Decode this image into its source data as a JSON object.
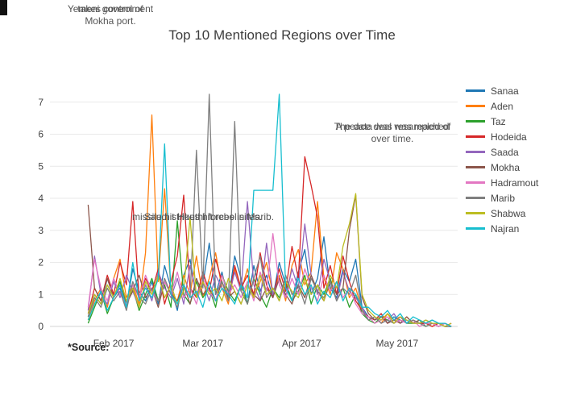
{
  "title": "Top 10 Mentioned Regions over Time",
  "source_label": "*Source:",
  "annotations": {
    "mokha": {
      "line1a": "Yemeni government",
      "line1b": "takes control of",
      "line2": "Mokha port."
    },
    "marib": {
      "line1a": "missile hit Houthi forces in Marib.",
      "line1b": "Saudi strikes hit rebel sites."
    },
    "resample": {
      "line1a": "A peace deal was reached",
      "line1b": "The data was resampled of",
      "line2": "over time."
    }
  },
  "chart_data": {
    "type": "line",
    "title": "Top 10 Mentioned Regions over Time",
    "xlabel": "",
    "ylabel": "",
    "grid": "horizontal",
    "legend_position": "right",
    "x_unit": "days since 2017-01-12",
    "xlim": [
      0,
      128
    ],
    "ylim": [
      -0.2,
      7.8
    ],
    "y_ticks": [
      0,
      1,
      2,
      3,
      4,
      5,
      6,
      7
    ],
    "x_ticks": [
      {
        "day": 20,
        "label": "Feb 2017"
      },
      {
        "day": 48,
        "label": "Mar 2017"
      },
      {
        "day": 79,
        "label": "Apr 2017"
      },
      {
        "day": 109,
        "label": "May 2017"
      }
    ],
    "x": [
      12,
      14,
      16,
      18,
      20,
      22,
      24,
      26,
      28,
      30,
      32,
      34,
      36,
      38,
      40,
      42,
      44,
      46,
      48,
      50,
      52,
      54,
      56,
      58,
      60,
      62,
      64,
      66,
      68,
      70,
      72,
      74,
      76,
      78,
      80,
      82,
      84,
      86,
      88,
      90,
      92,
      94,
      96,
      98,
      100,
      102,
      104,
      106,
      108,
      110,
      112,
      114,
      116,
      118,
      120,
      122,
      124,
      126
    ],
    "series": [
      {
        "name": "Sanaa",
        "color": "#1f77b4",
        "values": [
          0.3,
          1.0,
          0.7,
          1.5,
          0.9,
          1.2,
          0.6,
          1.8,
          1.1,
          0.8,
          1.4,
          0.7,
          1.9,
          1.2,
          0.5,
          1.6,
          2.1,
          0.9,
          1.3,
          2.6,
          1.0,
          1.7,
          0.8,
          2.2,
          1.5,
          0.7,
          1.9,
          1.1,
          1.6,
          0.9,
          2.0,
          1.3,
          0.8,
          1.7,
          2.4,
          1.0,
          1.5,
          2.8,
          1.2,
          0.9,
          1.8,
          1.4,
          2.1,
          0.6,
          0.3,
          0.2,
          0.4,
          0.1,
          0.3,
          0.2,
          0.1,
          0.2,
          0.1,
          0.1,
          0.2,
          0.1,
          0.1,
          0.0
        ]
      },
      {
        "name": "Aden",
        "color": "#ff7f0e",
        "values": [
          0.2,
          0.8,
          1.2,
          0.6,
          1.5,
          2.1,
          0.9,
          1.3,
          0.7,
          2.3,
          6.6,
          1.4,
          4.3,
          1.1,
          0.8,
          1.6,
          1.0,
          2.2,
          0.9,
          1.5,
          2.3,
          1.2,
          0.7,
          1.8,
          1.1,
          1.8,
          0.9,
          1.4,
          2.0,
          1.0,
          1.6,
          0.8,
          1.9,
          2.4,
          1.3,
          1.7,
          3.9,
          1.5,
          1.0,
          2.3,
          1.8,
          0.9,
          1.2,
          0.5,
          0.2,
          0.3,
          0.1,
          0.4,
          0.2,
          0.1,
          0.3,
          0.1,
          0.2,
          0.1,
          0.0,
          0.1,
          0.1,
          0.0
        ]
      },
      {
        "name": "Taz",
        "color": "#2ca02c",
        "values": [
          0.1,
          0.6,
          1.1,
          0.4,
          0.9,
          1.4,
          0.7,
          1.2,
          0.5,
          1.0,
          1.5,
          0.8,
          1.3,
          0.6,
          3.3,
          1.0,
          0.7,
          1.4,
          0.9,
          1.2,
          0.6,
          1.6,
          1.1,
          0.8,
          1.3,
          0.7,
          1.5,
          1.0,
          0.6,
          1.2,
          0.9,
          1.4,
          0.8,
          1.1,
          1.6,
          0.7,
          1.3,
          1.0,
          1.5,
          0.8,
          1.2,
          0.6,
          1.0,
          0.4,
          0.2,
          0.1,
          0.3,
          0.2,
          0.1,
          0.2,
          0.1,
          0.1,
          0.2,
          0.0,
          0.1,
          0.1,
          0.0,
          0.0
        ]
      },
      {
        "name": "Hodeida",
        "color": "#d62728",
        "values": [
          0.4,
          1.2,
          0.8,
          1.6,
          1.0,
          2.0,
          1.3,
          3.9,
          0.9,
          1.5,
          1.1,
          1.8,
          0.7,
          1.4,
          2.2,
          4.1,
          1.2,
          0.9,
          1.7,
          1.1,
          2.1,
          1.4,
          0.8,
          1.9,
          1.2,
          1.6,
          1.0,
          2.3,
          1.3,
          0.9,
          1.8,
          1.1,
          2.5,
          1.5,
          5.3,
          4.4,
          3.4,
          1.2,
          1.9,
          1.0,
          2.2,
          1.4,
          0.8,
          0.5,
          0.3,
          0.2,
          0.4,
          0.1,
          0.2,
          0.3,
          0.1,
          0.2,
          0.1,
          0.1,
          0.0,
          0.1,
          0.0,
          0.1
        ]
      },
      {
        "name": "Saada",
        "color": "#9467bd",
        "values": [
          0.5,
          2.2,
          1.0,
          0.7,
          1.4,
          0.9,
          1.6,
          1.1,
          0.6,
          1.3,
          0.8,
          1.7,
          1.2,
          0.9,
          1.5,
          0.7,
          1.9,
          1.0,
          1.4,
          0.8,
          1.6,
          1.2,
          0.9,
          1.7,
          1.1,
          3.9,
          1.3,
          0.8,
          2.6,
          1.0,
          1.5,
          0.9,
          1.8,
          1.2,
          3.2,
          1.6,
          1.0,
          2.1,
          1.4,
          0.8,
          1.7,
          1.1,
          0.9,
          0.6,
          0.2,
          0.3,
          0.1,
          0.2,
          0.4,
          0.1,
          0.2,
          0.1,
          0.1,
          0.2,
          0.1,
          0.0,
          0.1,
          0.0
        ]
      },
      {
        "name": "Mokha",
        "color": "#8c564b",
        "values": [
          3.8,
          1.2,
          0.8,
          1.5,
          0.9,
          1.3,
          0.7,
          1.1,
          1.6,
          0.9,
          1.2,
          0.6,
          1.4,
          1.0,
          0.8,
          1.3,
          0.7,
          1.5,
          1.0,
          1.2,
          0.8,
          1.4,
          0.9,
          1.1,
          0.7,
          1.3,
          1.0,
          0.8,
          1.2,
          0.9,
          1.5,
          1.0,
          0.7,
          1.3,
          0.9,
          1.6,
          1.1,
          0.8,
          1.4,
          1.0,
          1.2,
          3.0,
          4.1,
          0.9,
          0.4,
          0.2,
          0.3,
          0.1,
          0.2,
          0.1,
          0.3,
          0.1,
          0.2,
          0.1,
          0.1,
          0.0,
          0.1,
          0.0
        ]
      },
      {
        "name": "Hadramout",
        "color": "#e377c2",
        "values": [
          0.6,
          2.1,
          1.2,
          0.8,
          1.5,
          1.0,
          0.7,
          1.3,
          0.9,
          1.6,
          1.1,
          0.8,
          1.4,
          1.0,
          1.7,
          0.9,
          1.2,
          0.7,
          1.5,
          1.1,
          0.8,
          1.6,
          1.0,
          1.3,
          0.9,
          1.4,
          0.8,
          1.7,
          1.1,
          2.9,
          1.3,
          0.9,
          1.5,
          1.0,
          1.8,
          1.2,
          0.8,
          1.6,
          1.1,
          1.4,
          0.9,
          1.2,
          0.7,
          0.4,
          0.3,
          0.1,
          0.2,
          0.3,
          0.1,
          0.2,
          0.1,
          0.2,
          0.0,
          0.1,
          0.1,
          0.0,
          0.1,
          0.0
        ]
      },
      {
        "name": "Marib",
        "color": "#7f7f7f",
        "values": [
          0.3,
          0.9,
          0.6,
          1.2,
          0.8,
          1.1,
          0.5,
          1.4,
          0.9,
          0.7,
          1.2,
          0.8,
          1.5,
          1.0,
          0.6,
          1.3,
          0.9,
          5.5,
          1.2,
          7.25,
          1.0,
          1.4,
          0.8,
          6.4,
          1.1,
          0.7,
          1.5,
          2.2,
          0.9,
          1.2,
          0.8,
          1.6,
          1.0,
          1.3,
          0.7,
          1.5,
          1.1,
          0.9,
          1.4,
          0.8,
          1.2,
          1.0,
          1.6,
          0.5,
          0.2,
          0.3,
          0.1,
          0.2,
          0.1,
          0.3,
          0.1,
          0.2,
          0.1,
          0.0,
          0.1,
          0.1,
          0.0,
          0.0
        ]
      },
      {
        "name": "Shabwa",
        "color": "#bcbd22",
        "values": [
          0.4,
          1.0,
          0.7,
          1.3,
          0.9,
          1.5,
          0.8,
          1.2,
          0.6,
          1.4,
          1.0,
          1.6,
          0.9,
          1.3,
          0.7,
          1.1,
          3.4,
          0.9,
          1.4,
          1.0,
          1.2,
          0.8,
          1.5,
          1.1,
          0.7,
          1.3,
          0.9,
          1.6,
          1.0,
          1.2,
          0.8,
          1.4,
          1.1,
          0.9,
          1.5,
          1.0,
          1.3,
          0.8,
          1.6,
          1.2,
          2.5,
          3.2,
          4.15,
          1.0,
          0.5,
          0.3,
          0.2,
          0.4,
          0.1,
          0.3,
          0.2,
          0.1,
          0.1,
          0.2,
          0.1,
          0.1,
          0.0,
          0.1
        ]
      },
      {
        "name": "Najran",
        "color": "#17becf",
        "values": [
          0.2,
          0.7,
          1.1,
          0.5,
          0.9,
          1.3,
          0.6,
          2.0,
          0.8,
          1.2,
          0.9,
          1.5,
          5.7,
          1.0,
          0.7,
          1.3,
          0.9,
          1.1,
          0.6,
          1.4,
          0.8,
          1.2,
          1.0,
          0.7,
          1.3,
          0.9,
          4.25,
          4.25,
          4.25,
          4.25,
          7.25,
          1.2,
          0.8,
          1.5,
          1.0,
          1.3,
          0.7,
          1.1,
          0.9,
          1.4,
          0.8,
          1.2,
          1.0,
          0.6,
          0.6,
          0.4,
          0.3,
          0.5,
          0.2,
          0.4,
          0.1,
          0.3,
          0.2,
          0.1,
          0.2,
          0.1,
          0.1,
          0.0
        ]
      }
    ]
  }
}
